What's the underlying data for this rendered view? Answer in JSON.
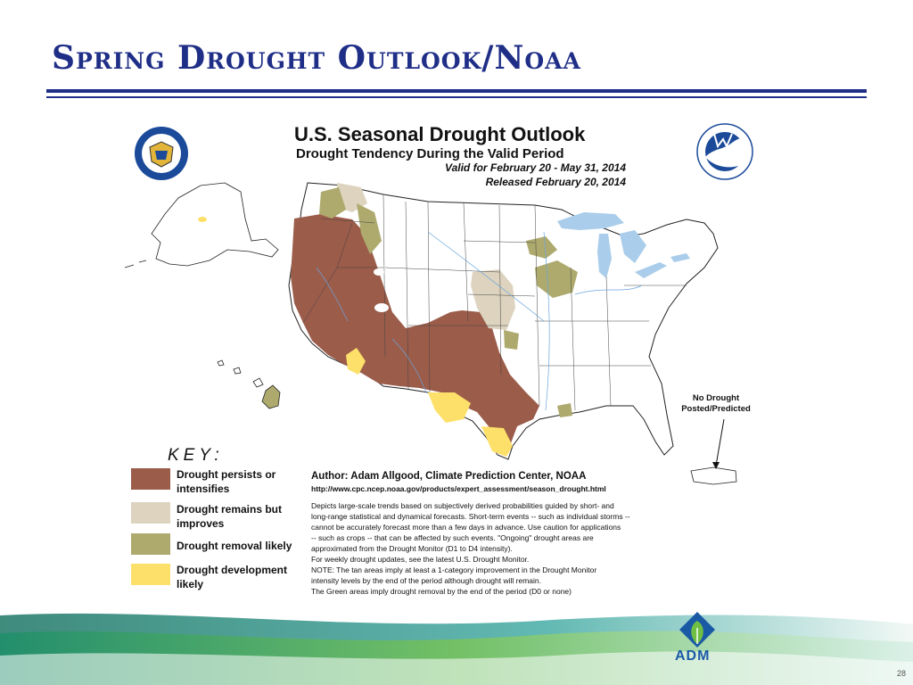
{
  "slide": {
    "title": "Spring Drought Outlook/Noaa",
    "page_number": "28",
    "footer_logo_text": "ADM"
  },
  "map": {
    "title": "U.S. Seasonal Drought Outlook",
    "subtitle": "Drought Tendency During the Valid Period",
    "valid": "Valid for February 20 - May 31, 2014",
    "released": "Released February 20, 2014",
    "no_drought_line1": "No Drought",
    "no_drought_line2": "Posted/Predicted"
  },
  "key": {
    "title": "KEY:",
    "items": [
      {
        "line1": "Drought persists or",
        "line2": "intensifies",
        "color": "#9b5c4a"
      },
      {
        "line1": "Drought remains but",
        "line2": "improves",
        "color": "#ddd3bf"
      },
      {
        "line1": "Drought removal likely",
        "line2": "",
        "color": "#aeaa6e"
      },
      {
        "line1": "Drought development",
        "line2": "likely",
        "color": "#fde06a"
      }
    ]
  },
  "credits": {
    "author": "Author: Adam Allgood, Climate Prediction Center, NOAA",
    "url": "http://www.cpc.ncep.noaa.gov/products/expert_assessment/season_drought.html",
    "notes": [
      "Depicts large-scale trends based on subjectively derived probabilities guided by short- and",
      "long-range statistical and dynamical forecasts. Short-term events -- such as individual storms --",
      "cannot be accurately forecast more than a few days in advance. Use caution for applications",
      "-- such as crops -- that can be affected by such events. \"Ongoing\" drought areas are",
      "approximated from the Drought Monitor (D1 to D4 intensity).",
      "For weekly drought updates, see the latest U.S. Drought Monitor.",
      "NOTE: The tan areas imply at least a 1-category improvement in the Drought Monitor",
      "intensity levels by the end of the period although drought will remain.",
      "The Green areas imply drought removal by the end of the period (D0 or none)"
    ]
  },
  "colors": {
    "title_blue": "#1f2e87",
    "persist": "#9b5c4a",
    "improve": "#ddd3bf",
    "removal": "#aeaa6e",
    "develop": "#fde06a",
    "water": "#a9cdea",
    "rivers": "#6aa5dc",
    "adm_blue": "#1a5aa5",
    "adm_green": "#6fbf44"
  }
}
